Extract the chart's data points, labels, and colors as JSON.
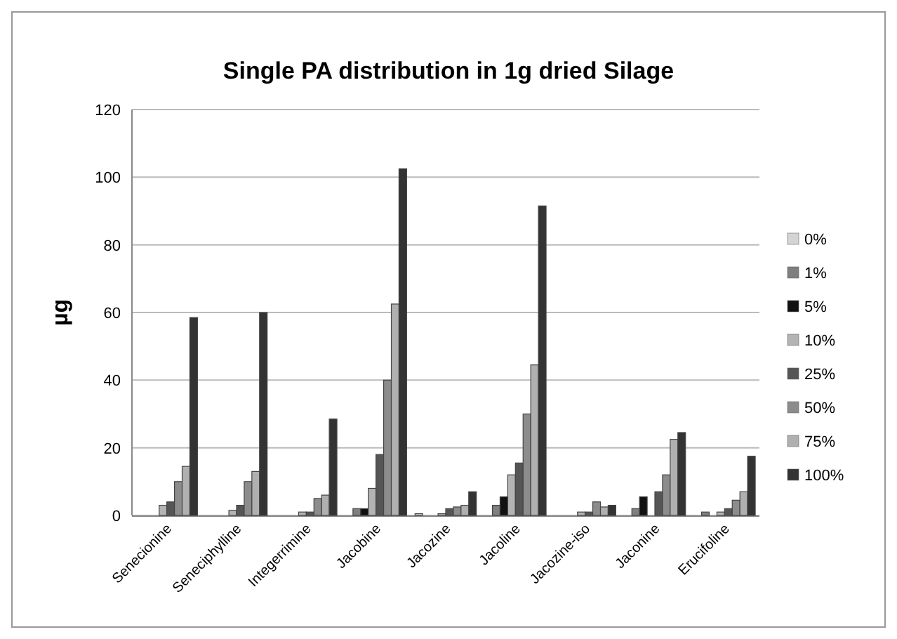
{
  "chart_data": {
    "type": "bar",
    "title": "Single PA distribution in 1g dried Silage",
    "ylabel": "µg",
    "categories": [
      "Senecionine",
      "Seneciphylline",
      "Integerrimine",
      "Jacobine",
      "Jacozine",
      "Jacoline",
      "Jacozine-iso",
      "Jaconine",
      "Erucifoline"
    ],
    "series": [
      {
        "name": "0%",
        "color": "#d4d4d4",
        "values": [
          0,
          0,
          0,
          0,
          0.5,
          0,
          0,
          0,
          0
        ]
      },
      {
        "name": "1%",
        "color": "#7f7f7f",
        "values": [
          0,
          0,
          0,
          2,
          0,
          3,
          0,
          2,
          1
        ]
      },
      {
        "name": "5%",
        "color": "#111111",
        "values": [
          0,
          0,
          0,
          2,
          0,
          5.5,
          0,
          5.5,
          0
        ]
      },
      {
        "name": "10%",
        "color": "#b4b4b4",
        "values": [
          3,
          1.5,
          1,
          8,
          0.5,
          12,
          1,
          0,
          1
        ]
      },
      {
        "name": "25%",
        "color": "#555555",
        "values": [
          4,
          3,
          1,
          18,
          2,
          15.5,
          1,
          7,
          2
        ]
      },
      {
        "name": "50%",
        "color": "#8c8c8c",
        "values": [
          10,
          10,
          5,
          40,
          2.5,
          30,
          4,
          12,
          4.5
        ]
      },
      {
        "name": "75%",
        "color": "#b0b0b0",
        "values": [
          14.5,
          13,
          6,
          62.5,
          3,
          44.5,
          2.5,
          22.5,
          7
        ]
      },
      {
        "name": "100%",
        "color": "#333333",
        "values": [
          58.5,
          60,
          28.5,
          102.5,
          7,
          91.5,
          3,
          24.5,
          17.5
        ]
      }
    ],
    "ylim": [
      0,
      120
    ],
    "yticks": [
      0,
      20,
      40,
      60,
      80,
      100,
      120
    ],
    "grid": "y",
    "legend": "right"
  }
}
